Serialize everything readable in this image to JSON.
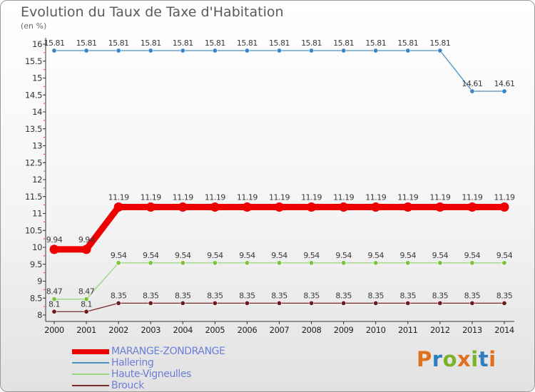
{
  "title": "Evolution du Taux de Taxe d'Habitation",
  "subtitle": "(en %)",
  "logo": {
    "text": "Proxiti",
    "letter_colors": [
      "#e0701b",
      "#2f7fc0",
      "#7ab32a",
      "#e0701b",
      "#7ab32a",
      "#2f7fc0",
      "#e0701b"
    ]
  },
  "chart_data": {
    "type": "line",
    "title": "Evolution du Taux de Taxe d'Habitation",
    "subtitle": "(en %)",
    "xlabel": "",
    "ylabel": "(en %)",
    "x": [
      "2000",
      "2001",
      "2002",
      "2003",
      "2004",
      "2005",
      "2006",
      "2007",
      "2008",
      "2009",
      "2010",
      "2011",
      "2012",
      "2013",
      "2014"
    ],
    "ylim": [
      8,
      16
    ],
    "yticks": [
      "8",
      "8.5",
      "9",
      "9.5",
      "10",
      "10.5",
      "11",
      "11.5",
      "12",
      "12.5",
      "13",
      "13.5",
      "14",
      "14.5",
      "15",
      "15.5",
      "16"
    ],
    "grid": false,
    "legend_position": "bottom-left",
    "series": [
      {
        "name": "MARANGE-ZONDRANGE",
        "color": "#ee0000",
        "style": "thick",
        "values": [
          9.94,
          9.94,
          11.19,
          11.19,
          11.19,
          11.19,
          11.19,
          11.19,
          11.19,
          11.19,
          11.19,
          11.19,
          11.19,
          11.19,
          11.19
        ],
        "labels": [
          "9.94",
          "9.94",
          "11.19",
          "11.19",
          "11.19",
          "11.19",
          "11.19",
          "11.19",
          "11.19",
          "11.19",
          "11.19",
          "11.19",
          "11.19",
          "11.19",
          "11.19"
        ]
      },
      {
        "name": "Hallering",
        "color": "#4a90c0",
        "marker_color": "#3d86c6",
        "style": "thin",
        "values": [
          15.81,
          15.81,
          15.81,
          15.81,
          15.81,
          15.81,
          15.81,
          15.81,
          15.81,
          15.81,
          15.81,
          15.81,
          15.81,
          14.61,
          14.61
        ],
        "labels": [
          "15.81",
          "15.81",
          "15.81",
          "15.81",
          "15.81",
          "15.81",
          "15.81",
          "15.81",
          "15.81",
          "15.81",
          "15.81",
          "15.81",
          "15.81",
          "14.61",
          "14.61"
        ]
      },
      {
        "name": "Haute-Vigneulles",
        "color": "#9ad67a",
        "marker_color": "#7cc23c",
        "style": "thin",
        "values": [
          8.47,
          8.47,
          9.54,
          9.54,
          9.54,
          9.54,
          9.54,
          9.54,
          9.54,
          9.54,
          9.54,
          9.54,
          9.54,
          9.54,
          9.54
        ],
        "labels": [
          "8.47",
          "8.47",
          "9.54",
          "9.54",
          "9.54",
          "9.54",
          "9.54",
          "9.54",
          "9.54",
          "9.54",
          "9.54",
          "9.54",
          "9.54",
          "9.54",
          "9.54"
        ]
      },
      {
        "name": "Brouck",
        "color": "#7a2a2a",
        "marker_color": "#6b1c1c",
        "style": "thin",
        "values": [
          8.1,
          8.1,
          8.35,
          8.35,
          8.35,
          8.35,
          8.35,
          8.35,
          8.35,
          8.35,
          8.35,
          8.35,
          8.35,
          8.35,
          8.35
        ],
        "labels": [
          "8.1",
          "8.1",
          "8.35",
          "8.35",
          "8.35",
          "8.35",
          "8.35",
          "8.35",
          "8.35",
          "8.35",
          "8.35",
          "8.35",
          "8.35",
          "8.35",
          "8.35"
        ]
      }
    ]
  }
}
